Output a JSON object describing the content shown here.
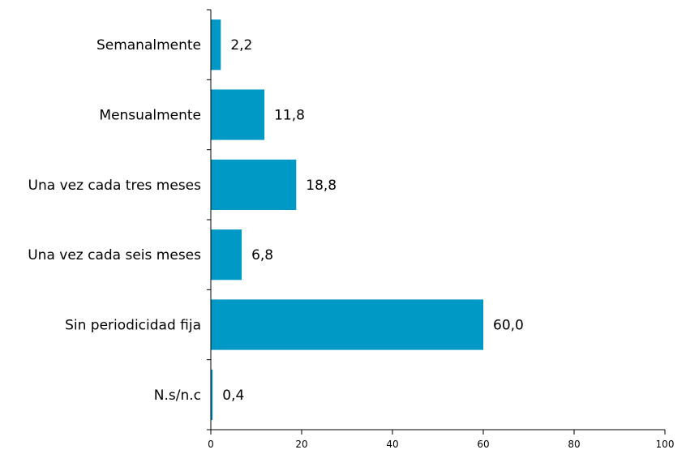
{
  "chart_data": {
    "type": "bar",
    "orientation": "horizontal",
    "categories": [
      "Semanalmente",
      "Mensualmente",
      "Una vez cada tres meses",
      "Una vez cada seis meses",
      "Sin periodicidad fija",
      "N.s/n.c"
    ],
    "values": [
      2.2,
      11.8,
      18.8,
      6.8,
      60.0,
      0.4
    ],
    "value_labels": [
      "2,2",
      "11,8",
      "18,8",
      "6,8",
      "60,0",
      "0,4"
    ],
    "x_ticks": [
      0,
      20,
      40,
      60,
      80,
      100
    ],
    "xlim": [
      0,
      100
    ],
    "title": "",
    "xlabel": "",
    "ylabel": "",
    "grid": false,
    "bar_color": "#0099c6"
  }
}
